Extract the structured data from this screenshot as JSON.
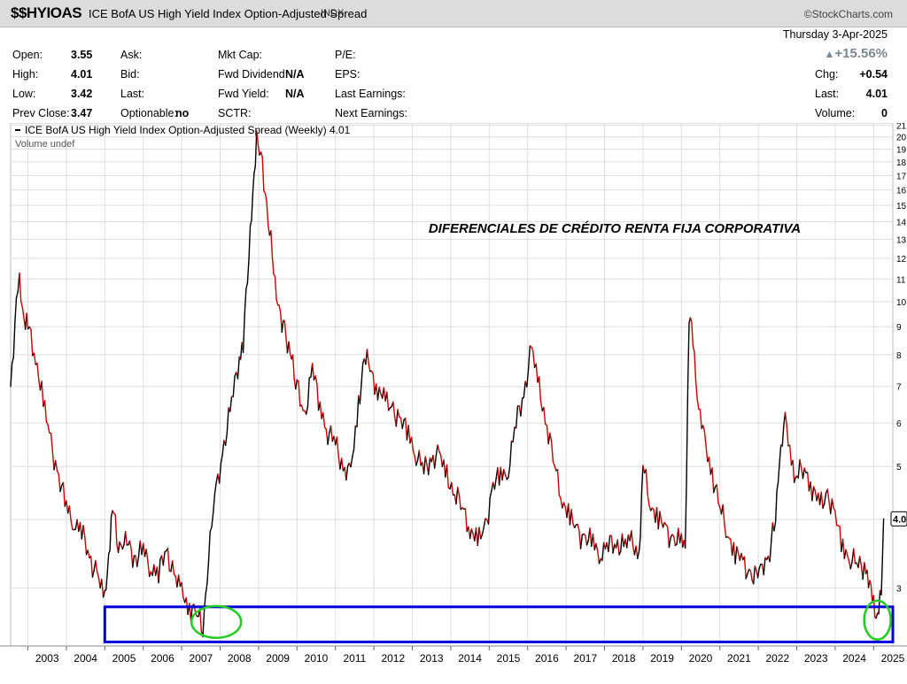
{
  "header": {
    "symbol": "$$HYIOAS",
    "full_name": "ICE BofA US High Yield Index Option-Adjusted Spread",
    "exchange": "INDX",
    "copyright": "©StockCharts.com"
  },
  "quote": {
    "open_label": "Open:",
    "open": "3.55",
    "high_label": "High:",
    "high": "4.01",
    "low_label": "Low:",
    "low": "3.42",
    "prev_close_label": "Prev Close:",
    "prev_close": "3.47",
    "ask_label": "Ask:",
    "bid_label": "Bid:",
    "last_label_mid": "Last:",
    "optionable_label": "Optionable:",
    "optionable": "no",
    "mktcap_label": "Mkt Cap:",
    "fwd_dividend_label": "Fwd Dividend:",
    "fwd_dividend": "N/A",
    "fwd_yield_label": "Fwd Yield:",
    "fwd_yield": "N/A",
    "sctr_label": "SCTR:",
    "pe_label": "P/E:",
    "eps_label": "EPS:",
    "last_earnings_label": "Last Earnings:",
    "next_earnings_label": "Next Earnings:",
    "date": "Thursday  3-Apr-2025",
    "change_pct": "+15.56%",
    "chg_label": "Chg:",
    "chg": "+0.54",
    "last_label": "Last:",
    "last": "4.01",
    "volume_label": "Volume:",
    "volume": "0"
  },
  "legend": {
    "series_label": "ICE BofA US High Yield Index Option-Adjusted Spread (Weekly) 4.01",
    "volume_label": "Volume undef"
  },
  "annotation": "DIFERENCIALES DE CRÉDITO RENTA FIJA CORPORATIVA",
  "last_value_tag": "4.0",
  "colors": {
    "up": "#000000",
    "down": "#d00000",
    "highlight_box": "#0000dd",
    "highlight_ellipse": "#22cc22",
    "grid": "#dedede"
  },
  "chart_data": {
    "type": "line",
    "scale": "log",
    "y_range": [
      2.35,
      21.2
    ],
    "x_range": [
      2002.55,
      2025.5
    ],
    "y_ticks": [
      "3",
      "4",
      "5",
      "6",
      "7",
      "8",
      "9",
      "10",
      "11",
      "12",
      "13",
      "14",
      "15",
      "16",
      "17",
      "18",
      "19",
      "20",
      "21"
    ],
    "x_ticks": [
      "2003",
      "2004",
      "2005",
      "2006",
      "2007",
      "2008",
      "2009",
      "2010",
      "2011",
      "2012",
      "2013",
      "2014",
      "2015",
      "2016",
      "2017",
      "2018",
      "2019",
      "2020",
      "2021",
      "2022",
      "2023",
      "2024",
      "2025"
    ],
    "series": [
      {
        "x": [
          2002.55,
          2002.7,
          2002.78,
          2002.9,
          2003.0,
          2003.2,
          2003.4,
          2003.6,
          2003.8,
          2004.0,
          2004.2,
          2004.4,
          2004.6,
          2004.8,
          2005.0,
          2005.1,
          2005.2,
          2005.35,
          2005.5,
          2005.65,
          2005.8,
          2006.0,
          2006.2,
          2006.4,
          2006.6,
          2006.8,
          2007.0,
          2007.2,
          2007.4,
          2007.55,
          2007.7,
          2007.9,
          2008.1,
          2008.3,
          2008.5,
          2008.6,
          2008.75,
          2008.85,
          2008.95,
          2009.1,
          2009.25,
          2009.5,
          2009.75,
          2010.0,
          2010.2,
          2010.4,
          2010.6,
          2010.8,
          2011.0,
          2011.2,
          2011.4,
          2011.6,
          2011.75,
          2011.9,
          2012.1,
          2012.3,
          2012.5,
          2012.7,
          2012.9,
          2013.1,
          2013.3,
          2013.5,
          2013.7,
          2013.9,
          2014.1,
          2014.3,
          2014.5,
          2014.7,
          2014.9,
          2015.1,
          2015.3,
          2015.5,
          2015.7,
          2015.9,
          2016.1,
          2016.3,
          2016.5,
          2016.7,
          2016.9,
          2017.1,
          2017.3,
          2017.5,
          2017.7,
          2017.9,
          2018.1,
          2018.3,
          2018.5,
          2018.7,
          2018.9,
          2019.0,
          2019.2,
          2019.4,
          2019.6,
          2019.8,
          2020.0,
          2020.1,
          2020.2,
          2020.3,
          2020.45,
          2020.6,
          2020.8,
          2021.0,
          2021.2,
          2021.4,
          2021.6,
          2021.8,
          2021.95,
          2022.1,
          2022.3,
          2022.45,
          2022.55,
          2022.7,
          2022.9,
          2023.0,
          2023.2,
          2023.4,
          2023.6,
          2023.8,
          2024.0,
          2024.2,
          2024.4,
          2024.6,
          2024.8,
          2024.9,
          2025.0,
          2025.1,
          2025.2,
          2025.26
        ],
        "values": [
          7.0,
          10.0,
          10.7,
          9.5,
          9.0,
          8.0,
          6.5,
          5.5,
          4.8,
          4.2,
          4.0,
          3.8,
          3.4,
          3.2,
          2.8,
          3.5,
          4.2,
          3.6,
          3.7,
          3.5,
          3.4,
          3.5,
          3.3,
          3.2,
          3.5,
          3.2,
          2.9,
          2.8,
          2.7,
          2.5,
          3.5,
          4.5,
          5.5,
          6.5,
          8.0,
          8.5,
          12.0,
          16.0,
          19.5,
          18.0,
          14.0,
          10.0,
          8.5,
          7.0,
          6.2,
          7.5,
          6.5,
          5.8,
          5.5,
          5.0,
          4.8,
          6.5,
          8.0,
          7.5,
          7.0,
          6.5,
          6.4,
          6.0,
          5.8,
          5.3,
          4.9,
          5.2,
          5.2,
          4.8,
          4.5,
          4.2,
          3.9,
          3.6,
          3.9,
          4.6,
          4.8,
          5.0,
          6.0,
          6.8,
          8.2,
          6.9,
          6.0,
          5.0,
          4.4,
          4.0,
          3.8,
          3.7,
          3.6,
          3.5,
          3.6,
          3.6,
          3.6,
          3.6,
          3.5,
          5.0,
          4.3,
          4.0,
          3.8,
          3.7,
          3.6,
          3.6,
          9.5,
          8.4,
          6.5,
          5.5,
          4.9,
          4.2,
          3.8,
          3.5,
          3.3,
          3.2,
          3.1,
          3.3,
          3.5,
          4.0,
          5.2,
          6.0,
          5.0,
          4.8,
          5.0,
          4.6,
          4.2,
          4.5,
          4.0,
          3.6,
          3.4,
          3.3,
          3.3,
          3.0,
          2.8,
          2.7,
          2.9,
          4.01
        ]
      }
    ]
  }
}
